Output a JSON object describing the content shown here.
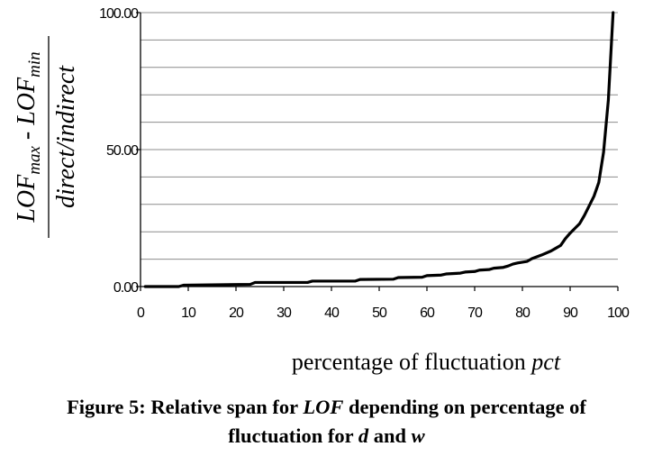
{
  "chart_data": {
    "type": "line",
    "xlabel": {
      "text": "percentage of fluctuation ",
      "italic_part": "pct"
    },
    "ylabel": {
      "numerator": {
        "lof1": "LOF",
        "sub1": "max",
        "sep": " - ",
        "lof2": "LOF",
        "sub2": "min"
      },
      "denominator": "direct/indirect"
    },
    "xlim": [
      0,
      100
    ],
    "ylim": [
      0,
      100
    ],
    "x_ticks": [
      0,
      10,
      20,
      30,
      40,
      50,
      60,
      70,
      80,
      90,
      100
    ],
    "x_tick_labels": [
      "0",
      "10",
      "20",
      "30",
      "40",
      "50",
      "60",
      "70",
      "80",
      "90",
      "100"
    ],
    "y_ticks": [
      0,
      50,
      100
    ],
    "y_tick_labels": [
      "0.00",
      "50.00",
      "100.00"
    ],
    "grid": {
      "y_step": 10,
      "x": false
    },
    "series": [
      {
        "color": "#000000",
        "x": [
          1,
          8,
          9,
          23,
          24,
          35,
          36,
          45,
          46,
          53,
          54,
          59,
          60,
          63,
          64,
          67,
          68,
          70,
          71,
          73,
          74,
          76,
          77,
          78,
          79,
          81,
          82,
          84,
          86,
          87,
          88,
          89,
          90,
          92,
          93,
          94,
          95,
          96,
          97,
          98,
          99
        ],
        "y": [
          0,
          0,
          0.5,
          0.8,
          1.5,
          1.5,
          2,
          2,
          2.6,
          2.7,
          3.3,
          3.4,
          4,
          4.2,
          4.6,
          4.9,
          5.3,
          5.5,
          6,
          6.2,
          6.7,
          7,
          7.5,
          8.2,
          8.6,
          9.2,
          10.2,
          11.5,
          13,
          14,
          15,
          17.5,
          19.5,
          23,
          26,
          29.5,
          33,
          38,
          49,
          68,
          100
        ]
      }
    ]
  },
  "caption": {
    "line1_a": "Figure 5: Relative span for ",
    "line1_b": "LOF",
    "line1_c": " depending on percentage of",
    "line2_a": "fluctuation for ",
    "line2_b": "d",
    "line2_c": " and ",
    "line2_d": "w"
  }
}
